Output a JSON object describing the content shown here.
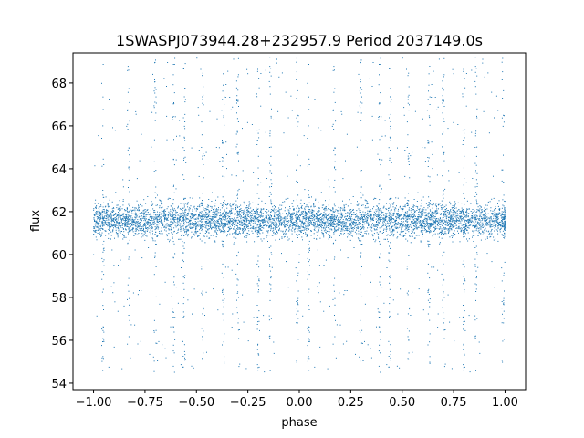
{
  "chart_data": {
    "type": "scatter",
    "title": "1SWASPJ073944.28+232957.9 Period 2037149.0s",
    "xlabel": "phase",
    "ylabel": "flux",
    "xlim": [
      -1.1,
      1.1
    ],
    "ylim": [
      53.7,
      69.4
    ],
    "grid": false,
    "marker_color": "#1f77b4",
    "x_ticks": [
      -1.0,
      -0.75,
      -0.5,
      -0.25,
      0.0,
      0.25,
      0.5,
      0.75,
      1.0
    ],
    "x_tick_labels": [
      "−1.00",
      "−0.75",
      "−0.50",
      "−0.25",
      "0.00",
      "0.25",
      "0.50",
      "0.75",
      "1.00"
    ],
    "y_ticks": [
      54,
      56,
      58,
      60,
      62,
      64,
      66,
      68
    ],
    "y_tick_labels": [
      "54",
      "56",
      "58",
      "60",
      "62",
      "64",
      "66",
      "68"
    ],
    "series": [
      {
        "x_range": [
          -1.0,
          1.0
        ],
        "dense_band_y": [
          59.9,
          63.2
        ],
        "band_center_y": 61.6,
        "outlier_y_range": [
          54.5,
          69.2
        ],
        "phase_symmetric": true
      }
    ]
  }
}
